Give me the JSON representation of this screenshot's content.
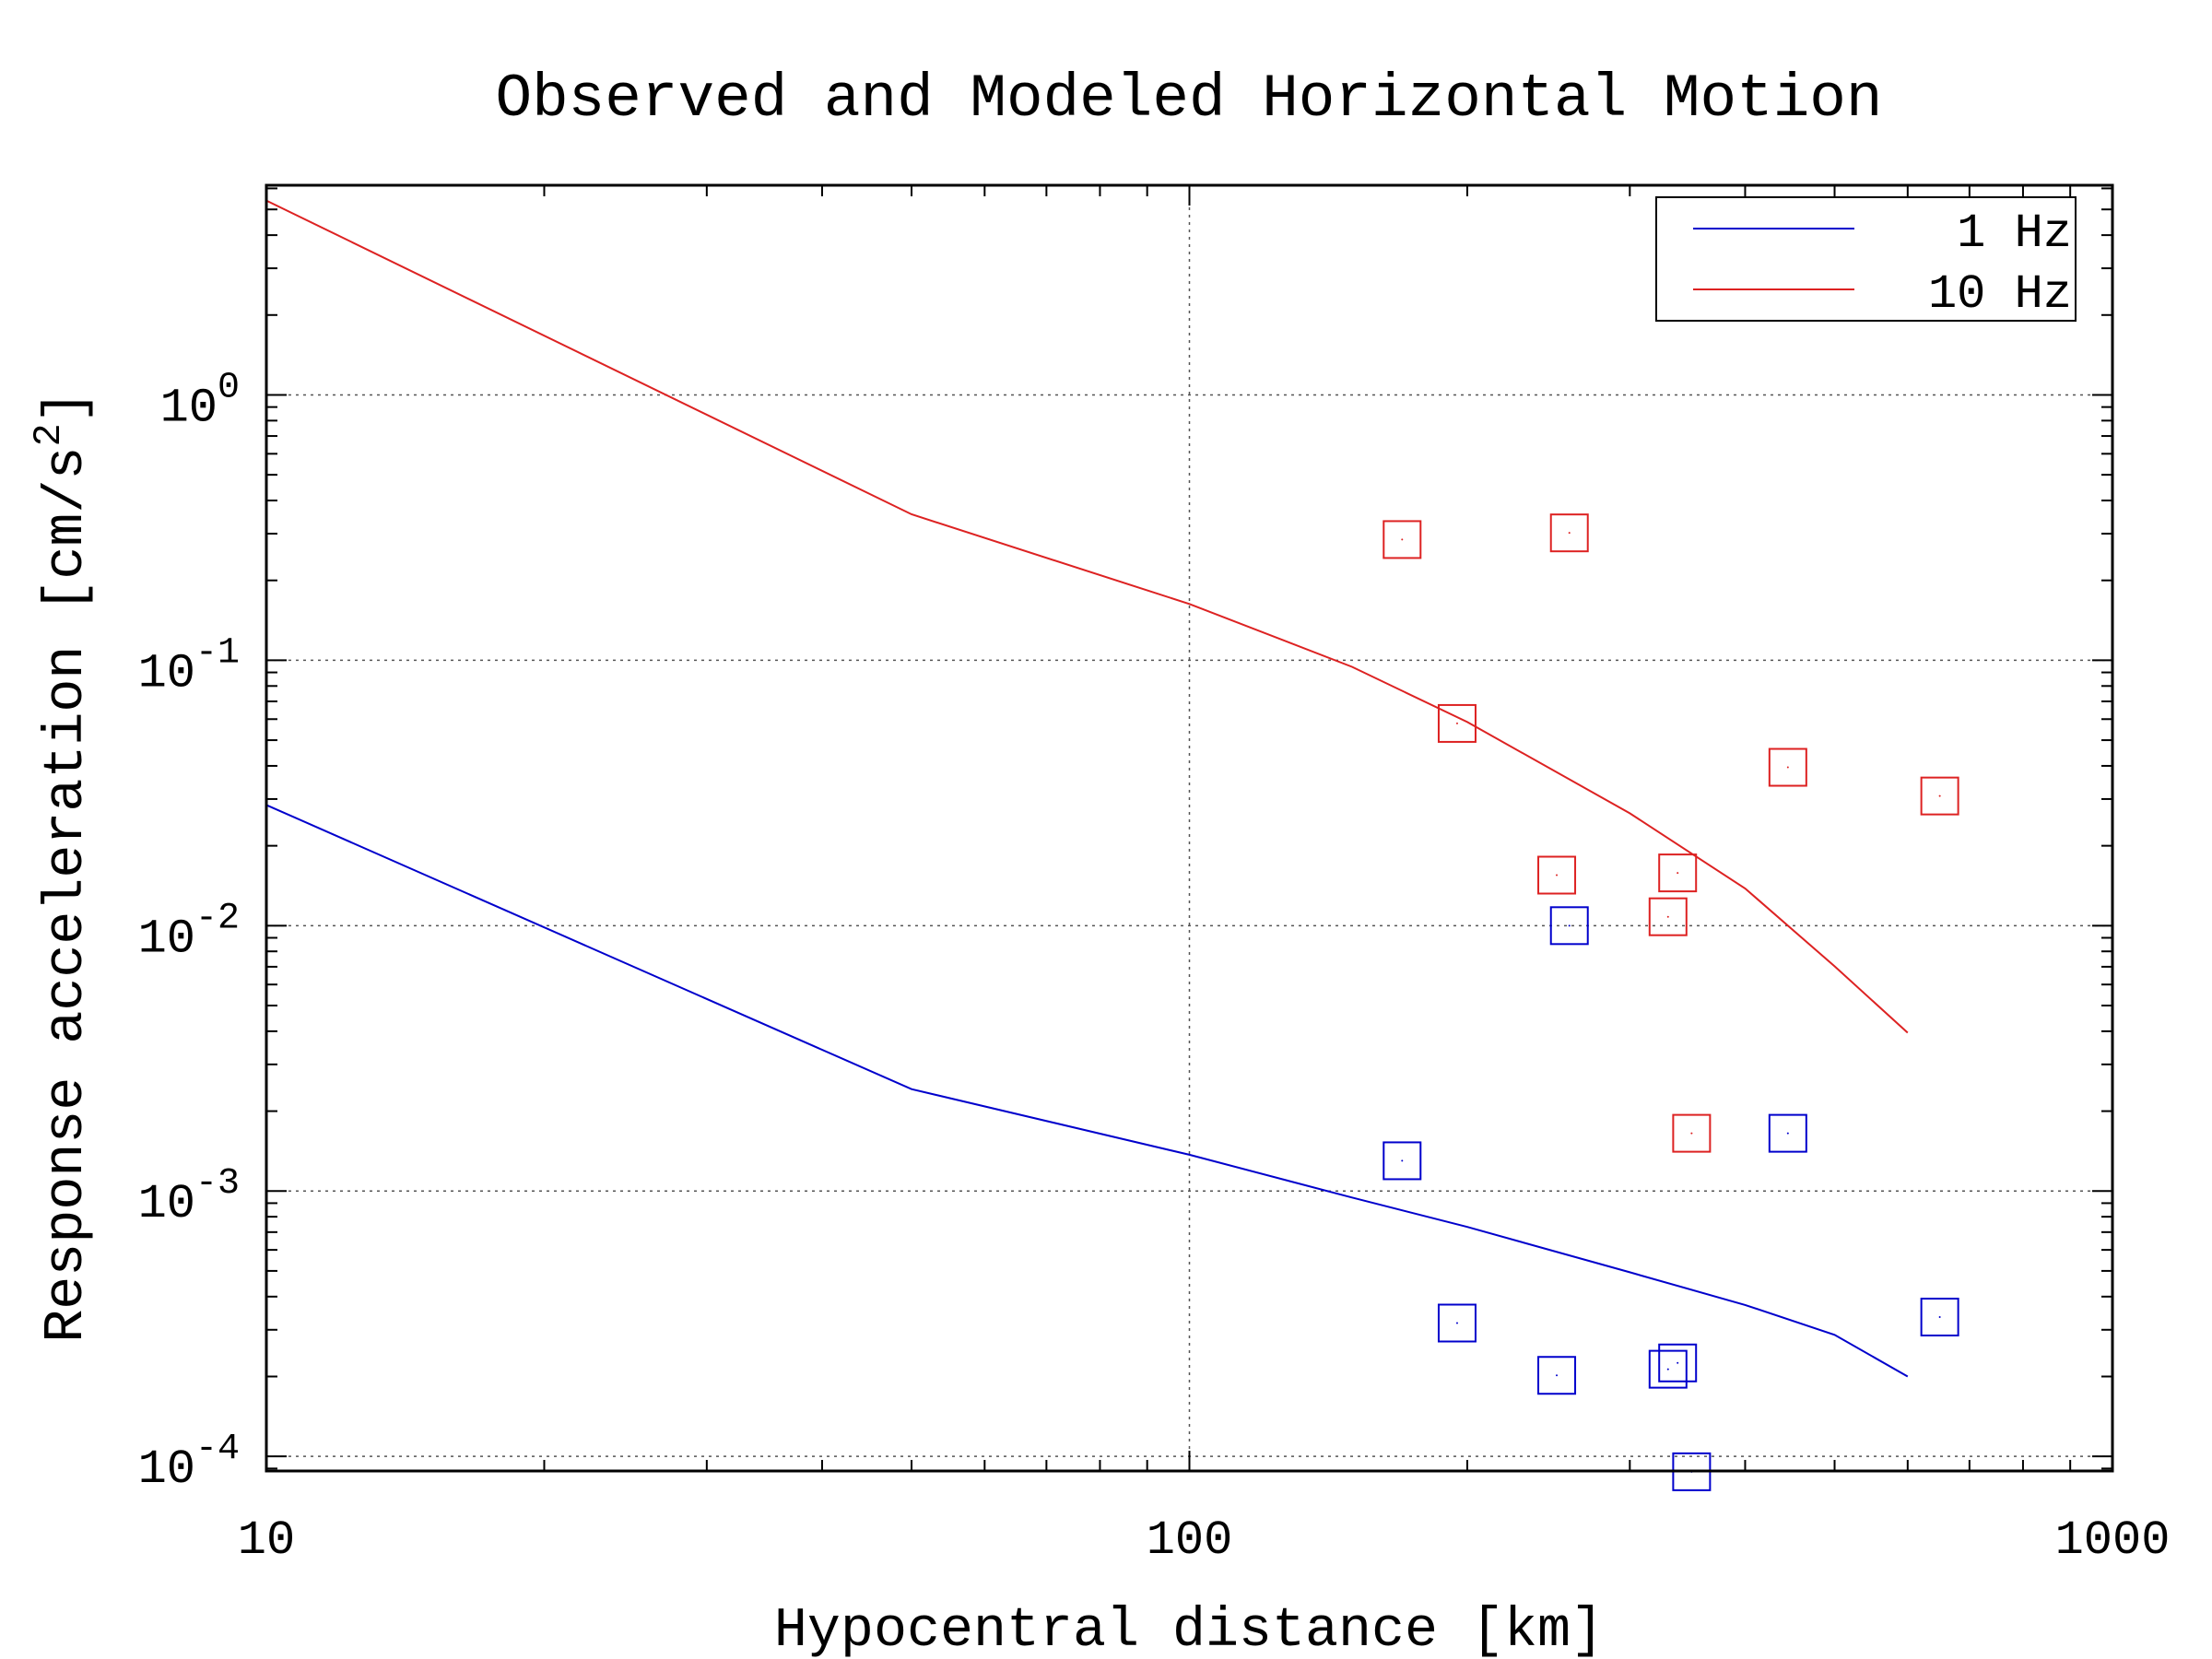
{
  "chart_data": {
    "type": "line",
    "title": "Observed and Modeled Horizontal Motion",
    "xlabel": "Hypocentral distance [km]",
    "ylabel_base": "Response acceleration [cm/s",
    "ylabel_sup": "2",
    "ylabel_end": "]",
    "xscale": "log",
    "yscale": "log",
    "xlim": [
      10,
      1000
    ],
    "ylim_log10": [
      -4.055,
      0.79
    ],
    "x_ticks": [
      {
        "value": 10,
        "label": "10"
      },
      {
        "value": 100,
        "label": "100"
      },
      {
        "value": 1000,
        "label": "1000"
      }
    ],
    "y_ticks": [
      {
        "exp": 0,
        "base": "10",
        "sup": "0"
      },
      {
        "exp": -1,
        "base": "10",
        "sup": "-1"
      },
      {
        "exp": -2,
        "base": "10",
        "sup": "-2"
      },
      {
        "exp": -3,
        "base": "10",
        "sup": "-3"
      },
      {
        "exp": -4,
        "base": "10",
        "sup": "-4"
      }
    ],
    "grid": true,
    "legend_position": "top-right",
    "series": [
      {
        "name": "1 Hz",
        "color": "#0000cc",
        "model_x": [
          10,
          50,
          100,
          150,
          200,
          300,
          400,
          500,
          600
        ],
        "model_y": [
          0.0285,
          0.00242,
          0.00137,
          0.000945,
          0.000732,
          0.000494,
          0.000372,
          0.000287,
          0.0002
        ],
        "observed_x": [
          170,
          195,
          250,
          258,
          330,
          338,
          350,
          445,
          650
        ],
        "observed_y": [
          0.0013,
          0.000318,
          0.000202,
          0.01,
          0.000213,
          0.000225,
          8.75e-05,
          0.00165,
          0.000335
        ]
      },
      {
        "name": "10 Hz",
        "color": "#dd2222",
        "model_x": [
          10,
          50,
          100,
          150,
          200,
          300,
          400,
          500,
          600
        ],
        "model_y": [
          5.4,
          0.355,
          0.163,
          0.0945,
          0.0585,
          0.0265,
          0.0138,
          0.00703,
          0.00395
        ],
        "observed_x": [
          170,
          195,
          250,
          258,
          330,
          338,
          350,
          445,
          650
        ],
        "observed_y": [
          0.285,
          0.0578,
          0.0155,
          0.302,
          0.0108,
          0.0158,
          0.00165,
          0.0395,
          0.0308
        ]
      }
    ]
  }
}
